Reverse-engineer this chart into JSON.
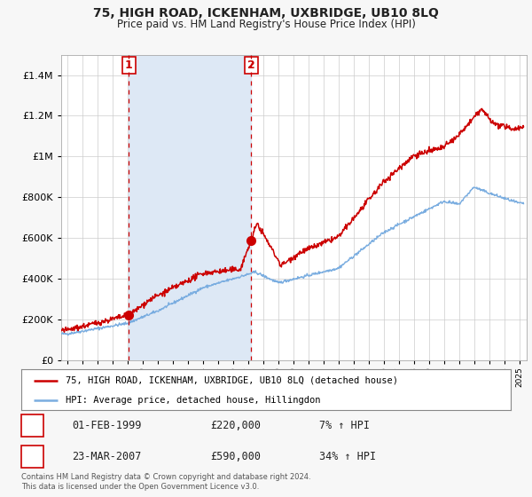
{
  "title": "75, HIGH ROAD, ICKENHAM, UXBRIDGE, UB10 8LQ",
  "subtitle": "Price paid vs. HM Land Registry's House Price Index (HPI)",
  "legend_line1": "75, HIGH ROAD, ICKENHAM, UXBRIDGE, UB10 8LQ (detached house)",
  "legend_line2": "HPI: Average price, detached house, Hillingdon",
  "sale1_label": "1",
  "sale1_date": "01-FEB-1999",
  "sale1_price": "£220,000",
  "sale1_hpi": "7% ↑ HPI",
  "sale1_year": 1999.08,
  "sale1_value": 220000,
  "sale2_label": "2",
  "sale2_date": "23-MAR-2007",
  "sale2_price": "£590,000",
  "sale2_hpi": "34% ↑ HPI",
  "sale2_year": 2007.22,
  "sale2_value": 590000,
  "vline1_year": 1999.08,
  "vline2_year": 2007.22,
  "shade_color": "#dde8f5",
  "red_line_color": "#cc0000",
  "blue_line_color": "#7aade0",
  "dot_color": "#cc0000",
  "grid_color": "#cccccc",
  "background_color": "#f7f7f7",
  "plot_bg_color": "#ffffff",
  "footer_text": "Contains HM Land Registry data © Crown copyright and database right 2024.\nThis data is licensed under the Open Government Licence v3.0.",
  "ylim_max": 1500000,
  "xlim_start": 1994.6,
  "xlim_end": 2025.5
}
